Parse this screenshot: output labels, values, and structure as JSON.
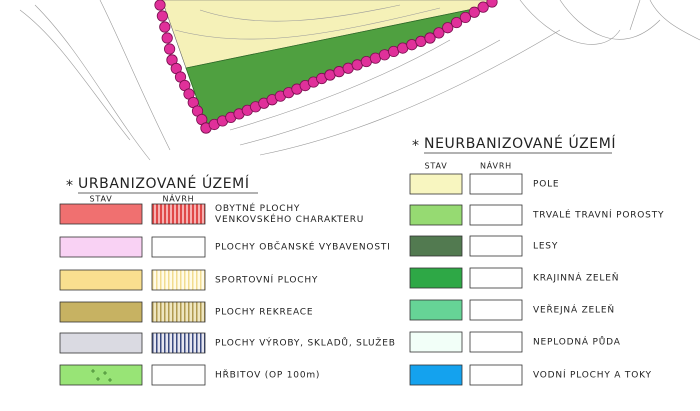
{
  "legend": {
    "urban": {
      "marker": "*",
      "title": "URBANIZOVANÉ ÚZEMÍ",
      "columns": [
        "STAV",
        "NÁVRH"
      ],
      "items": [
        {
          "lines": [
            "OBYTNÉ PLOCHY",
            "VENKOVSKÉHO CHARAKTERU"
          ]
        },
        {
          "lines": [
            "PLOCHY OBČANSKÉ VYBAVENOSTI"
          ]
        },
        {
          "lines": [
            "SPORTOVNÍ PLOCHY"
          ]
        },
        {
          "lines": [
            "PLOCHY REKREACE"
          ]
        },
        {
          "lines": [
            "PLOCHY VÝROBY, SKLADŮ, SLUŽEB"
          ]
        },
        {
          "lines": [
            "HŘBITOV (OP 100m)"
          ]
        }
      ]
    },
    "nonurban": {
      "marker": "*",
      "title": "NEURBANIZOVANÉ ÚZEMÍ",
      "columns": [
        "STAV",
        "NÁVRH"
      ],
      "items": [
        {
          "lines": [
            "POLE"
          ]
        },
        {
          "lines": [
            "TRVALÉ TRAVNÍ POROSTY"
          ]
        },
        {
          "lines": [
            "LESY"
          ]
        },
        {
          "lines": [
            "KRAJINNÁ ZELEŇ"
          ]
        },
        {
          "lines": [
            "VEŘEJNÁ ZELEŇ"
          ]
        },
        {
          "lines": [
            "NEPLODNÁ PŮDA"
          ]
        },
        {
          "lines": [
            "VODNÍ PLOCHY A TOKY"
          ]
        }
      ]
    }
  }
}
